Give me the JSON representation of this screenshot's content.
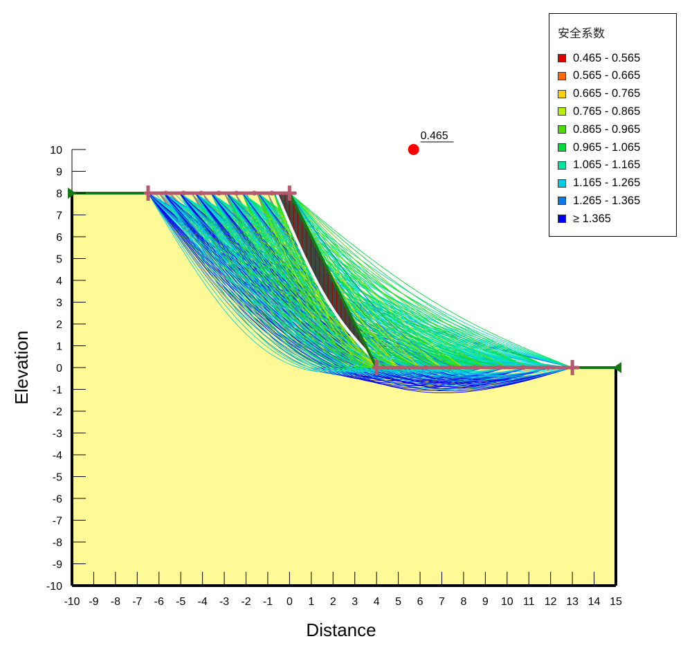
{
  "chart_data": {
    "type": "slope_stability",
    "xlabel": "Distance",
    "ylabel": "Elevation",
    "xlim": [
      -10,
      15
    ],
    "ylim": [
      -10,
      10
    ],
    "x_ticks": [
      "-10",
      "-9",
      "-8",
      "-7",
      "-6",
      "-5",
      "-4",
      "-3",
      "-2",
      "-1",
      "0",
      "1",
      "2",
      "3",
      "4",
      "5",
      "6",
      "7",
      "8",
      "9",
      "10",
      "11",
      "12",
      "13",
      "14",
      "15"
    ],
    "y_ticks": [
      "10",
      "9",
      "8",
      "7",
      "6",
      "5",
      "4",
      "3",
      "2",
      "1",
      "0",
      "-1",
      "-2",
      "-3",
      "-4",
      "-5",
      "-6",
      "-7",
      "-8",
      "-9",
      "-10"
    ],
    "ground_profile": [
      [
        -10,
        8
      ],
      [
        0,
        8
      ],
      [
        4,
        0
      ],
      [
        15,
        0
      ]
    ],
    "entry_range": [
      -6.5,
      0
    ],
    "exit_range": [
      4,
      13
    ],
    "critical_center": {
      "x": 5.7,
      "y": 10,
      "label": "0.465"
    },
    "min_factor_of_safety": 0.465,
    "legend": {
      "title": "安全系数",
      "entries": [
        {
          "label": "0.465 - 0.565",
          "color": "#e00000"
        },
        {
          "label": "0.565 - 0.665",
          "color": "#ff6a00"
        },
        {
          "label": "0.665 - 0.765",
          "color": "#ffd000"
        },
        {
          "label": "0.765 - 0.865",
          "color": "#b4f000"
        },
        {
          "label": "0.865 - 0.965",
          "color": "#4edc00"
        },
        {
          "label": "0.965 - 1.065",
          "color": "#00dc3a"
        },
        {
          "label": "1.065 - 1.165",
          "color": "#00e6a0"
        },
        {
          "label": "1.165 - 1.265",
          "color": "#00d0e6"
        },
        {
          "label": "1.265 - 1.365",
          "color": "#0a78e6"
        },
        {
          "label": "≥ 1.365",
          "color": "#0000f0"
        }
      ]
    }
  },
  "colors": {
    "soil": "#fffa96",
    "ground_line": "#127812",
    "grid_range": "#b45a6e",
    "slice_lines": "#9b0000",
    "trial_gray": "#8a8a8a"
  }
}
